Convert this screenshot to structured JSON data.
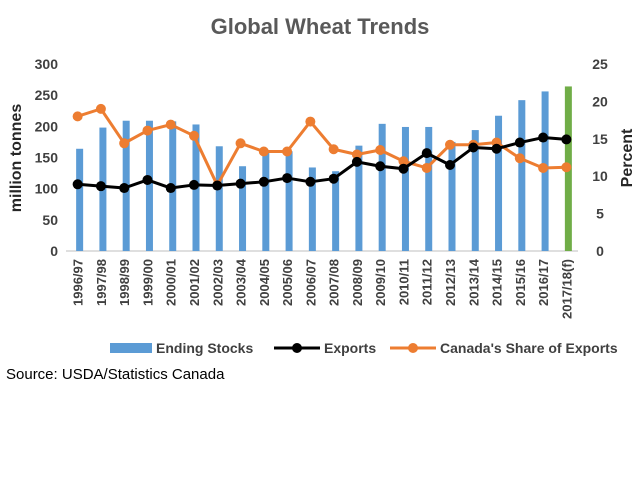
{
  "chart_data": {
    "type": "bar+line",
    "title": "Global Wheat Trends",
    "ylabel_left": "million tonnes",
    "ylabel_right": "Percent",
    "ylim_left": [
      0,
      300
    ],
    "ylim_right": [
      0,
      25
    ],
    "yticks_left": [
      "0",
      "50",
      "100",
      "150",
      "200",
      "250",
      "300"
    ],
    "yticks_right": [
      "0",
      "5",
      "10",
      "15",
      "20",
      "25"
    ],
    "categories": [
      "1996/97",
      "1997/98",
      "1998/99",
      "1999/00",
      "2000/01",
      "2001/02",
      "2002/03",
      "2003/04",
      "2004/05",
      "2005/06",
      "2006/07",
      "2007/08",
      "2008/09",
      "2009/10",
      "2010/11",
      "2011/12",
      "2012/13",
      "2013/14",
      "2014/15",
      "2015/16",
      "2016/17",
      "2017/18(f)"
    ],
    "series": [
      {
        "name": "Ending Stocks",
        "kind": "bar",
        "axis": "left",
        "color": "#5b9bd5",
        "highlight_last_color": "#70ad47",
        "values": [
          164,
          198,
          209,
          209,
          208,
          203,
          168,
          136,
          162,
          160,
          134,
          128,
          169,
          204,
          199,
          199,
          175,
          194,
          217,
          242,
          256,
          264
        ]
      },
      {
        "name": "Exports",
        "kind": "line",
        "axis": "left",
        "color": "#000000",
        "values": [
          107,
          104,
          101,
          114,
          101,
          106,
          105,
          108,
          111,
          117,
          111,
          116,
          143,
          136,
          132,
          157,
          138,
          166,
          164,
          174,
          182,
          179
        ]
      },
      {
        "name": "Canada's Share of Exports",
        "kind": "line",
        "axis": "right",
        "color": "#ed7d31",
        "values": [
          18.0,
          19.0,
          14.4,
          16.1,
          16.9,
          15.4,
          8.8,
          14.4,
          13.3,
          13.3,
          17.3,
          13.6,
          12.9,
          13.5,
          12.0,
          11.1,
          14.2,
          14.2,
          14.5,
          12.4,
          11.1,
          11.2
        ]
      }
    ],
    "legend_position": "bottom",
    "grid": false
  },
  "footer": {
    "source": "Source: USDA/Statistics Canada"
  }
}
